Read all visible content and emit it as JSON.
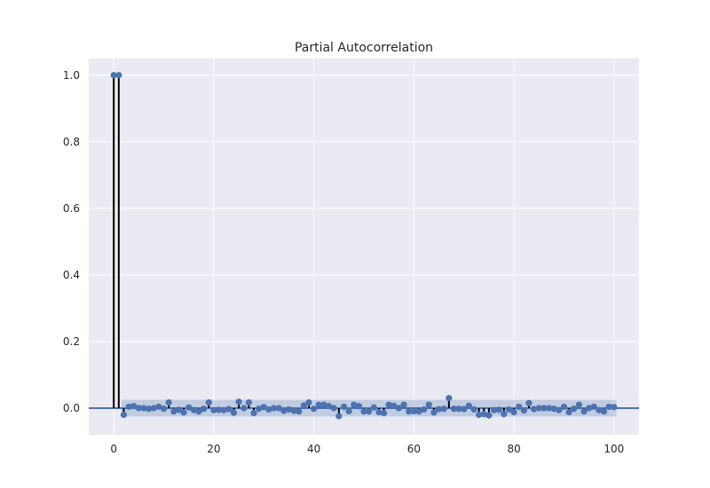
{
  "chart_data": {
    "type": "stem",
    "title": "Partial Autocorrelation",
    "xlabel": "",
    "ylabel": "",
    "xlim": [
      -5,
      105
    ],
    "ylim": [
      -0.08,
      1.05
    ],
    "xticks": [
      0,
      20,
      40,
      60,
      80,
      100
    ],
    "yticks": [
      0.0,
      0.2,
      0.4,
      0.6,
      0.8,
      1.0
    ],
    "xtick_labels": [
      "0",
      "20",
      "40",
      "60",
      "80",
      "100"
    ],
    "ytick_labels": [
      "0.0",
      "0.2",
      "0.4",
      "0.6",
      "0.8",
      "1.0"
    ],
    "grid": true,
    "confidence_band": {
      "lower": -0.025,
      "upper": 0.025,
      "from_lag": 1,
      "to_lag": 100
    },
    "baseline": 0,
    "series": [
      {
        "lags": [
          0,
          1,
          2,
          3,
          4,
          5,
          6,
          7,
          8,
          9,
          10,
          11,
          12,
          13,
          14,
          15,
          16,
          17,
          18,
          19,
          20,
          21,
          22,
          23,
          24,
          25,
          26,
          27,
          28,
          29,
          30,
          31,
          32,
          33,
          34,
          35,
          36,
          37,
          38,
          39,
          40,
          41,
          42,
          43,
          44,
          45,
          46,
          47,
          48,
          49,
          50,
          51,
          52,
          53,
          54,
          55,
          56,
          57,
          58,
          59,
          60,
          61,
          62,
          63,
          64,
          65,
          66,
          67,
          68,
          69,
          70,
          71,
          72,
          73,
          74,
          75,
          76,
          77,
          78,
          79,
          80,
          81,
          82,
          83,
          84,
          85,
          86,
          87,
          88,
          89,
          90,
          91,
          92,
          93,
          94,
          95,
          96,
          97,
          98,
          99,
          100
        ],
        "values": [
          1.0,
          1.0,
          -0.02,
          0.004,
          0.006,
          0.0,
          0.0,
          -0.002,
          0.0,
          0.004,
          -0.002,
          0.017,
          -0.01,
          -0.005,
          -0.013,
          0.002,
          -0.006,
          -0.01,
          -0.002,
          0.017,
          -0.006,
          -0.005,
          -0.006,
          -0.003,
          -0.014,
          0.019,
          0.0,
          0.017,
          -0.015,
          -0.002,
          0.003,
          -0.004,
          0.0,
          0.0,
          -0.008,
          -0.004,
          -0.008,
          -0.01,
          0.008,
          0.017,
          -0.002,
          0.01,
          0.01,
          0.006,
          0.0,
          -0.024,
          0.004,
          -0.009,
          0.01,
          0.006,
          -0.01,
          -0.01,
          0.002,
          -0.012,
          -0.015,
          0.01,
          0.007,
          0.0,
          0.01,
          -0.01,
          -0.009,
          -0.01,
          -0.004,
          0.01,
          -0.013,
          -0.003,
          -0.002,
          0.03,
          -0.002,
          -0.002,
          -0.003,
          0.007,
          -0.004,
          -0.02,
          -0.018,
          -0.022,
          -0.006,
          -0.005,
          -0.018,
          -0.004,
          -0.012,
          0.004,
          -0.007,
          0.015,
          -0.003,
          0.0,
          0.0,
          0.0,
          -0.002,
          -0.006,
          0.004,
          -0.012,
          -0.002,
          0.01,
          -0.01,
          0.0,
          0.004,
          -0.006,
          -0.01,
          0.004,
          0.003
        ]
      }
    ],
    "colors": {
      "axes_bg": "#eaeaf2",
      "grid": "#ffffff",
      "marker": "#4c72b0",
      "stem": "#000000",
      "baseline": "#4c72b0",
      "band": "#4c72b0"
    }
  }
}
